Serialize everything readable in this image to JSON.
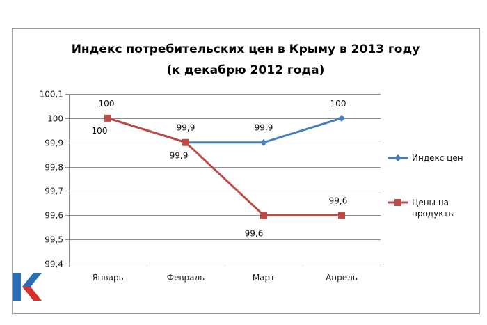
{
  "chart_data": {
    "type": "line",
    "title": "Индекс потребительских цен в Крыму в 2013 году",
    "subtitle": "(к декабрю 2012 года)",
    "categories": [
      "Январь",
      "Февраль",
      "Март",
      "Апрель"
    ],
    "series": [
      {
        "name": "Индекс цен",
        "values": [
          100,
          99.9,
          99.9,
          100
        ],
        "color": "#4a7ebb",
        "marker": "diamond",
        "labels": [
          "100",
          "99,9",
          "99,9",
          "100"
        ]
      },
      {
        "name": "Цены на продукты",
        "name_lines": [
          "Цены на",
          "продукты"
        ],
        "values": [
          100,
          99.9,
          99.6,
          99.6
        ],
        "color": "#be4b48",
        "marker": "square",
        "labels": [
          "100",
          "99,9",
          "99,6",
          "99,6"
        ]
      }
    ],
    "y_ticks": [
      99.4,
      99.5,
      99.6,
      99.7,
      99.8,
      99.9,
      100,
      100.1
    ],
    "y_tick_labels": [
      "99,4",
      "99,5",
      "99,6",
      "99,7",
      "99,8",
      "99,9",
      "100",
      "100,1"
    ],
    "ylim": [
      99.4,
      100.1
    ],
    "grid": true,
    "legend": "right",
    "xlabel": "",
    "ylabel": ""
  },
  "logo": {
    "icon": "k-letter-logo-icon",
    "colors": [
      "#2a6db5",
      "#d8312b"
    ]
  }
}
